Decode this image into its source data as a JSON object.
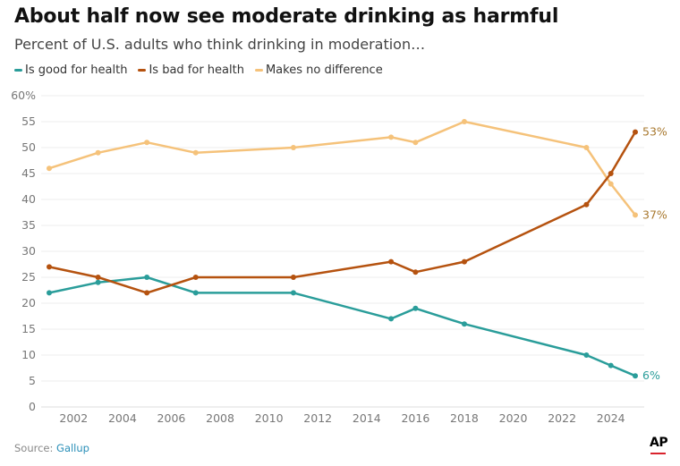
{
  "header": {
    "title": "About half now see moderate drinking as harmful",
    "subtitle": "Percent of U.S. adults who think drinking in moderation…"
  },
  "footer": {
    "source_label": "Source:",
    "source_name": "Gallup",
    "logo_text": "AP"
  },
  "chart_data": {
    "type": "line",
    "title": "About half now see moderate drinking as harmful",
    "subtitle": "Percent of U.S. adults who think drinking in moderation…",
    "xlabel": "",
    "ylabel": "",
    "xlim": [
      2001,
      2025
    ],
    "ylim": [
      0,
      60
    ],
    "grid": true,
    "legend_position": "top-left",
    "x_ticks": [
      2002,
      2004,
      2006,
      2008,
      2010,
      2012,
      2014,
      2016,
      2018,
      2020,
      2022,
      2024
    ],
    "y_ticks": [
      0,
      5,
      10,
      15,
      20,
      25,
      30,
      35,
      40,
      45,
      50,
      55,
      60
    ],
    "y_tick_labels": [
      "0",
      "5",
      "10",
      "15",
      "20",
      "25",
      "30",
      "35",
      "40",
      "45",
      "50",
      "55",
      "60%"
    ],
    "series": [
      {
        "name": "Is good for health",
        "color": "#2a9d9a",
        "label_color": "#2a9d9a",
        "end_label": "6%",
        "points": [
          [
            2001,
            22
          ],
          [
            2003,
            24
          ],
          [
            2005,
            25
          ],
          [
            2007,
            22
          ],
          [
            2011,
            22
          ],
          [
            2015,
            17
          ],
          [
            2016,
            19
          ],
          [
            2018,
            16
          ],
          [
            2023,
            10
          ],
          [
            2024,
            8
          ],
          [
            2025,
            6
          ]
        ]
      },
      {
        "name": "Is bad for health",
        "color": "#b5520f",
        "label_color": "#a8782e",
        "end_label": "53%",
        "points": [
          [
            2001,
            27
          ],
          [
            2003,
            25
          ],
          [
            2005,
            22
          ],
          [
            2007,
            25
          ],
          [
            2011,
            25
          ],
          [
            2015,
            28
          ],
          [
            2016,
            26
          ],
          [
            2018,
            28
          ],
          [
            2023,
            39
          ],
          [
            2024,
            45
          ],
          [
            2025,
            53
          ]
        ]
      },
      {
        "name": "Makes no difference",
        "color": "#f5c27a",
        "label_color": "#a8782e",
        "end_label": "37%",
        "points": [
          [
            2001,
            46
          ],
          [
            2003,
            49
          ],
          [
            2005,
            51
          ],
          [
            2007,
            49
          ],
          [
            2011,
            50
          ],
          [
            2015,
            52
          ],
          [
            2016,
            51
          ],
          [
            2018,
            55
          ],
          [
            2023,
            50
          ],
          [
            2024,
            43
          ],
          [
            2025,
            37
          ]
        ]
      }
    ]
  }
}
